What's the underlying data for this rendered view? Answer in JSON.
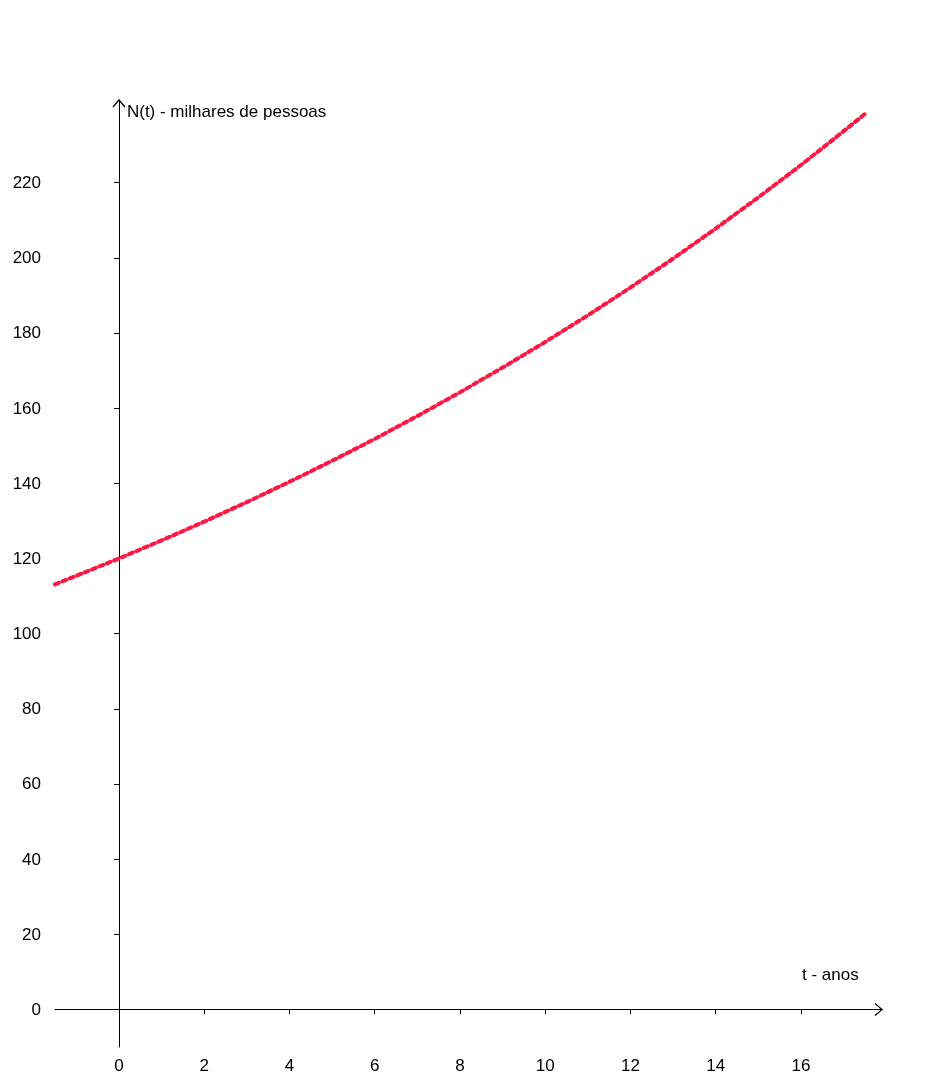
{
  "chart_data": {
    "type": "line",
    "xlabel": "t - anos",
    "ylabel": "N(t) - milhares de pessoas",
    "x": [
      -1.5,
      -1,
      0,
      1,
      2,
      3,
      4,
      5,
      6,
      7,
      8,
      9,
      10,
      11,
      12,
      13,
      14,
      15,
      16,
      17,
      17.5
    ],
    "series": [
      {
        "color": "#ff1744",
        "values": [
          113.1,
          115.4,
          120,
          124.8,
          129.8,
          135,
          140.4,
          146,
          151.8,
          157.9,
          164.2,
          170.8,
          177.6,
          184.7,
          192.1,
          199.8,
          207.8,
          216.1,
          224.7,
          233.7,
          238.3
        ]
      }
    ],
    "xlim": [
      -1.5,
      17.9
    ],
    "ylim": [
      -10,
      242
    ],
    "xticks": [
      0,
      2,
      4,
      6,
      8,
      10,
      12,
      14,
      16
    ],
    "yticks": [
      0,
      20,
      40,
      60,
      80,
      100,
      120,
      140,
      160,
      180,
      200,
      220
    ],
    "marker": "none",
    "line_style": "dotted"
  }
}
